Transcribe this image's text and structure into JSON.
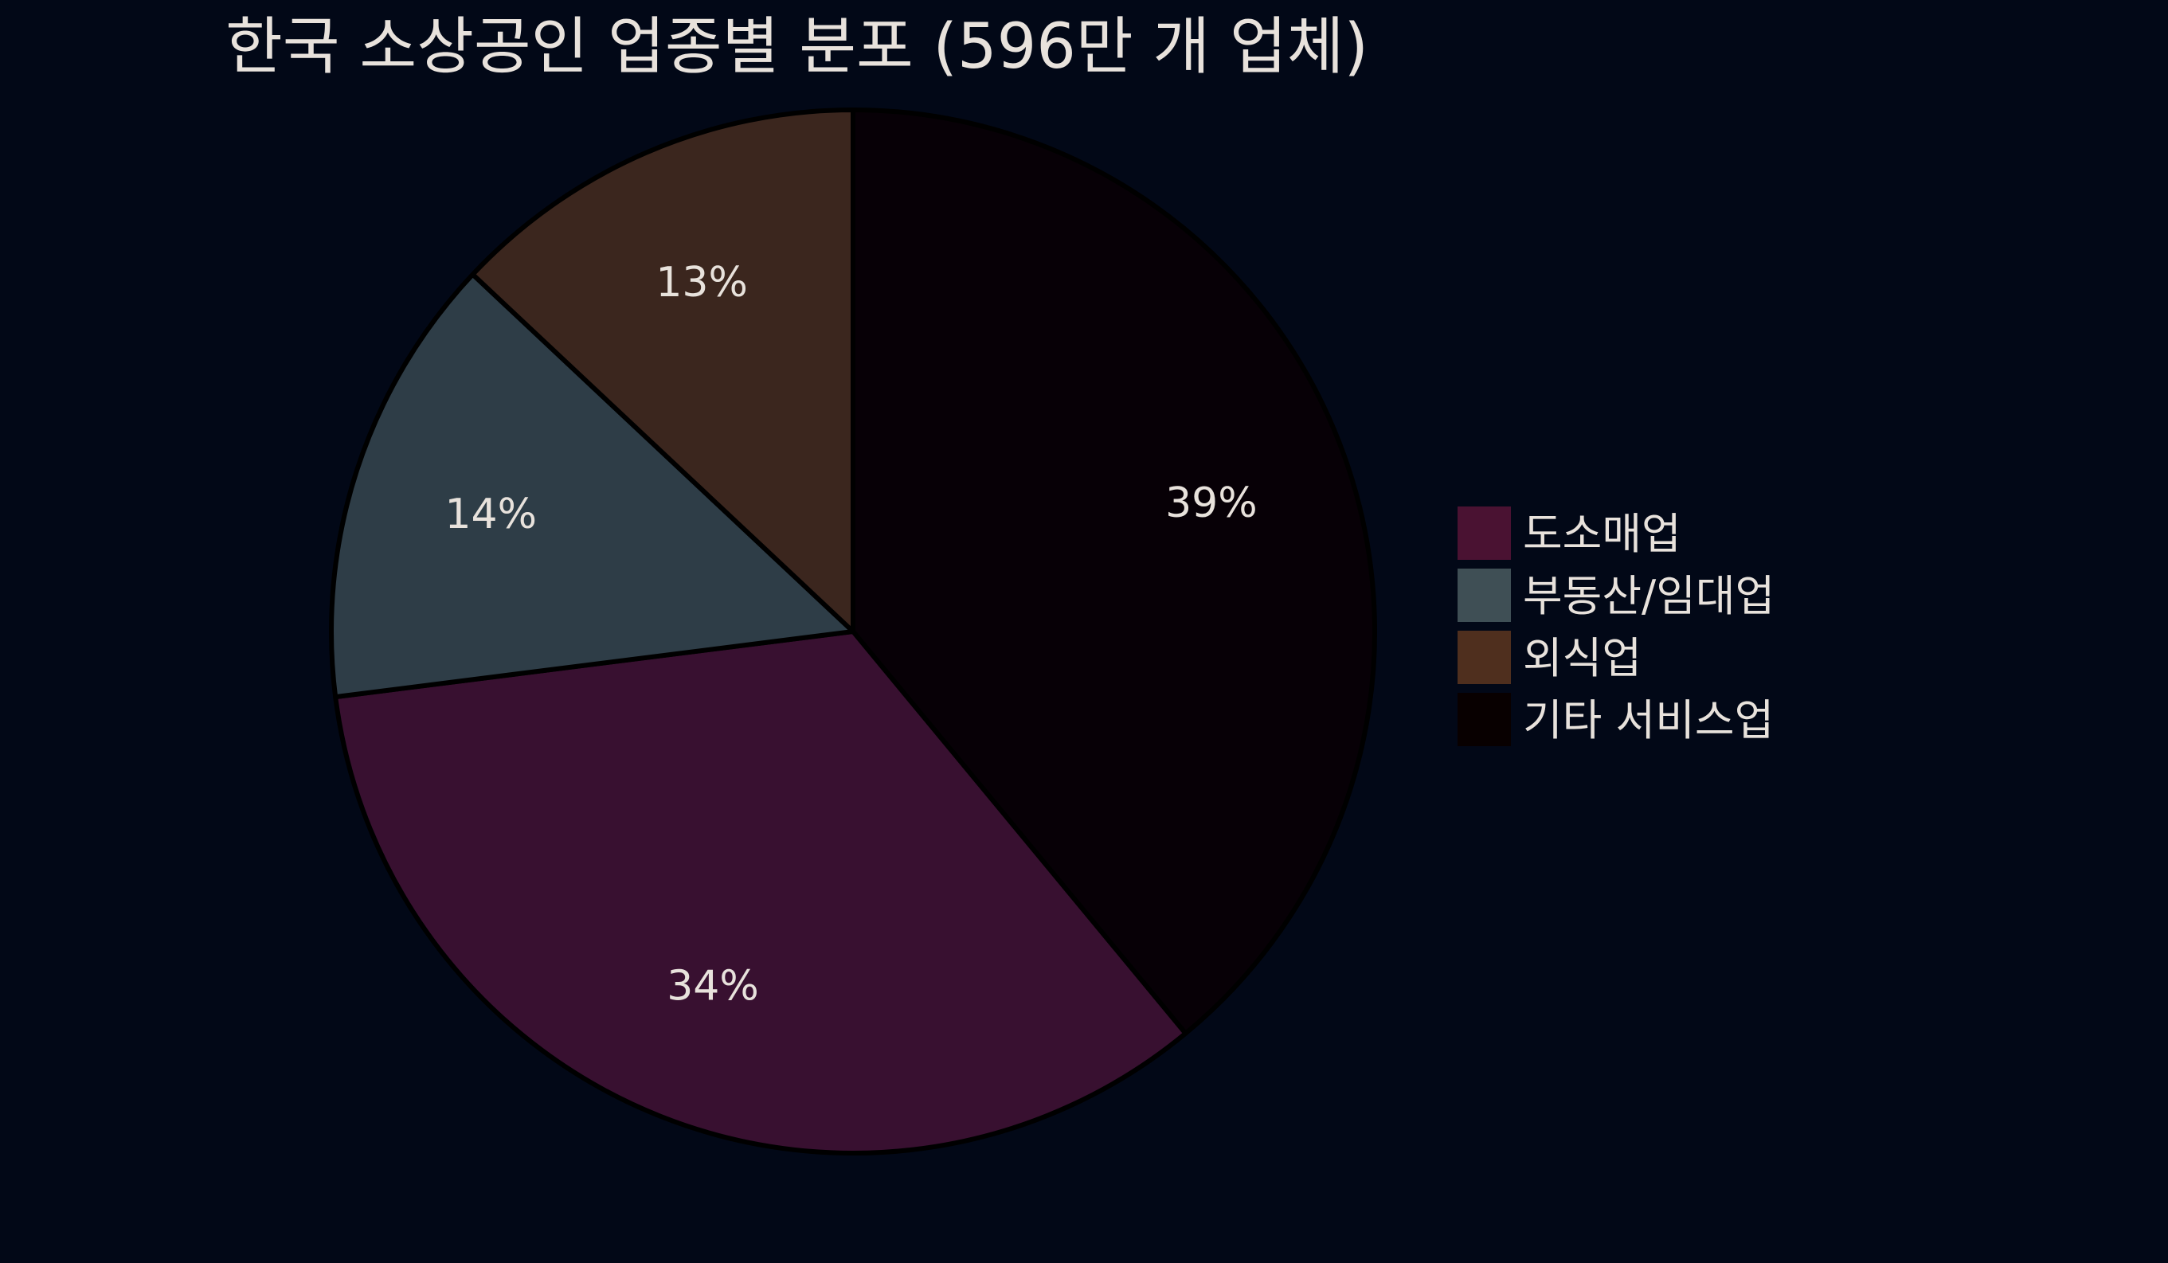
{
  "chart_data": {
    "type": "pie",
    "title": "한국 소상공인 업종별 분포 (596만 개 업체)",
    "categories": [
      "도소매업",
      "부동산/임대업",
      "외식업",
      "기타 서비스업"
    ],
    "values": [
      34,
      14,
      13,
      39
    ],
    "labels": [
      "34%",
      "14%",
      "13%",
      "39%"
    ],
    "unit": "%",
    "direction": "clockwise",
    "legend_position": "right",
    "colors": [
      "#4a1232",
      "#3f4f55",
      "#4f2f1e",
      "#080000"
    ],
    "slice_colors": [
      "#381030",
      "#2e3d47",
      "#3b261e",
      "#070006"
    ],
    "background": "#020817",
    "text_color": "#e8e2dc"
  }
}
